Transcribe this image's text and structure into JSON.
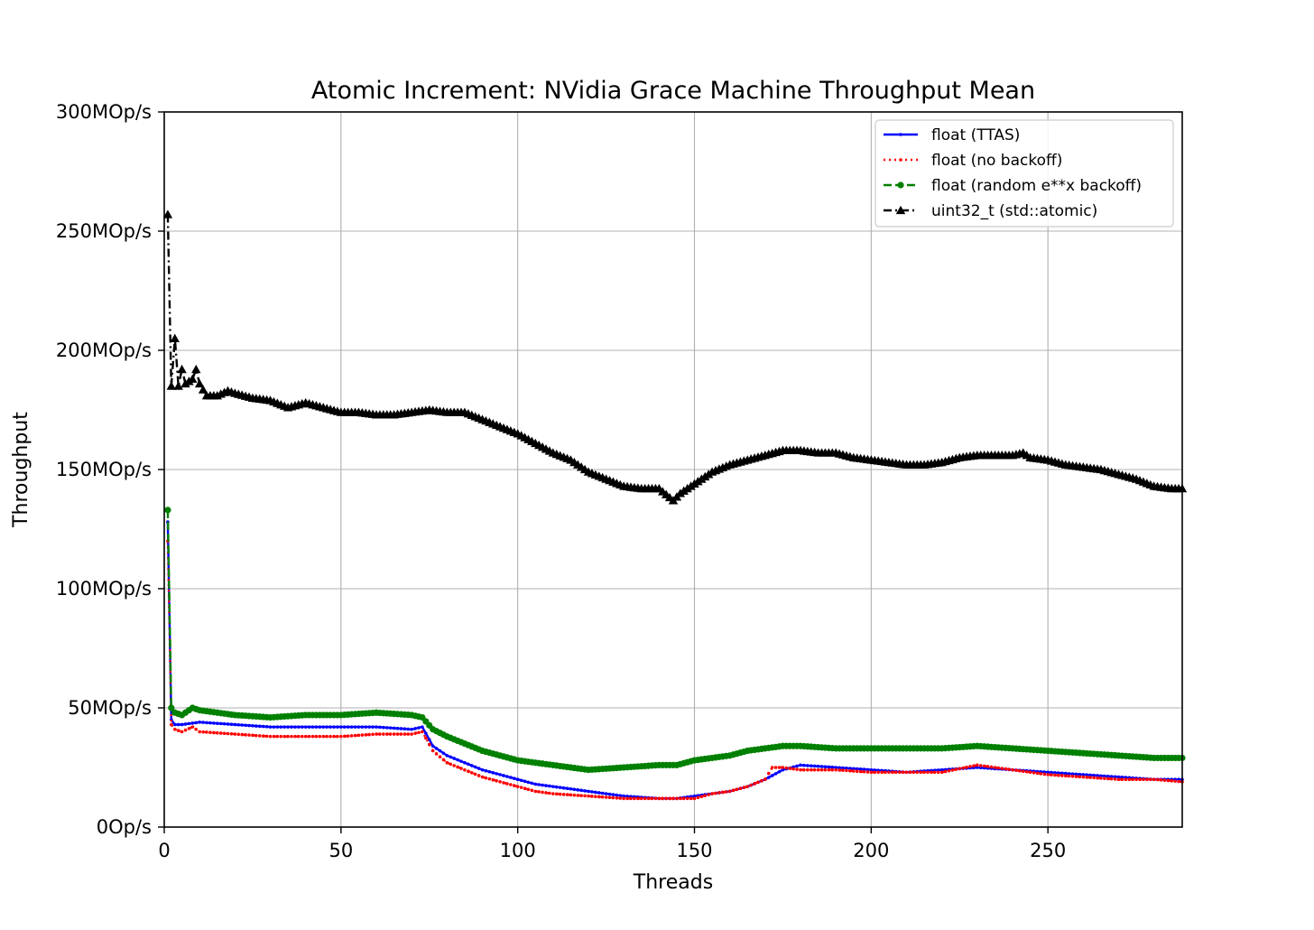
{
  "chart_data": {
    "type": "line",
    "title": "Atomic Increment: NVidia Grace Machine Throughput Mean",
    "xlabel": "Threads",
    "ylabel": "Throughput",
    "xlim": [
      0,
      288
    ],
    "ylim": [
      0,
      300
    ],
    "x_ticks": [
      0,
      50,
      100,
      150,
      200,
      250
    ],
    "x_tick_labels": [
      "0",
      "50",
      "100",
      "150",
      "200",
      "250"
    ],
    "y_ticks": [
      0,
      50,
      100,
      150,
      200,
      250,
      300
    ],
    "y_tick_labels": [
      "0Op/s",
      "50MOp/s",
      "100MOp/s",
      "150MOp/s",
      "200MOp/s",
      "250MOp/s",
      "300MOp/s"
    ],
    "grid": true,
    "legend_position": "top-right",
    "series": [
      {
        "name": "float (TTAS)",
        "color": "#0000ff",
        "marker": "point",
        "linestyle": "solid",
        "points": [
          [
            1,
            128
          ],
          [
            2,
            45
          ],
          [
            3,
            43
          ],
          [
            5,
            43
          ],
          [
            10,
            44
          ],
          [
            20,
            43
          ],
          [
            30,
            42
          ],
          [
            40,
            42
          ],
          [
            50,
            42
          ],
          [
            60,
            42
          ],
          [
            70,
            41
          ],
          [
            73,
            42
          ],
          [
            76,
            34
          ],
          [
            80,
            30
          ],
          [
            85,
            27
          ],
          [
            90,
            24
          ],
          [
            95,
            22
          ],
          [
            100,
            20
          ],
          [
            105,
            18
          ],
          [
            110,
            17
          ],
          [
            120,
            15
          ],
          [
            130,
            13
          ],
          [
            140,
            12
          ],
          [
            145,
            12
          ],
          [
            150,
            13
          ],
          [
            155,
            14
          ],
          [
            160,
            15
          ],
          [
            165,
            17
          ],
          [
            170,
            20
          ],
          [
            175,
            24
          ],
          [
            180,
            26
          ],
          [
            190,
            25
          ],
          [
            200,
            24
          ],
          [
            210,
            23
          ],
          [
            220,
            24
          ],
          [
            230,
            25
          ],
          [
            240,
            24
          ],
          [
            250,
            23
          ],
          [
            260,
            22
          ],
          [
            270,
            21
          ],
          [
            280,
            20
          ],
          [
            288,
            20
          ]
        ]
      },
      {
        "name": "float (no backoff)",
        "color": "#ff0000",
        "marker": "point",
        "linestyle": "dotted",
        "points": [
          [
            1,
            120
          ],
          [
            2,
            43
          ],
          [
            3,
            41
          ],
          [
            5,
            40
          ],
          [
            8,
            42
          ],
          [
            10,
            40
          ],
          [
            20,
            39
          ],
          [
            30,
            38
          ],
          [
            40,
            38
          ],
          [
            50,
            38
          ],
          [
            60,
            39
          ],
          [
            70,
            39
          ],
          [
            73,
            40
          ],
          [
            76,
            32
          ],
          [
            80,
            27
          ],
          [
            85,
            24
          ],
          [
            90,
            21
          ],
          [
            95,
            19
          ],
          [
            100,
            17
          ],
          [
            105,
            15
          ],
          [
            110,
            14
          ],
          [
            120,
            13
          ],
          [
            130,
            12
          ],
          [
            140,
            12
          ],
          [
            145,
            12
          ],
          [
            150,
            12
          ],
          [
            155,
            14
          ],
          [
            160,
            15
          ],
          [
            165,
            17
          ],
          [
            170,
            20
          ],
          [
            172,
            25
          ],
          [
            175,
            25
          ],
          [
            180,
            24
          ],
          [
            190,
            24
          ],
          [
            200,
            23
          ],
          [
            210,
            23
          ],
          [
            220,
            23
          ],
          [
            230,
            26
          ],
          [
            240,
            24
          ],
          [
            250,
            22
          ],
          [
            260,
            21
          ],
          [
            270,
            20
          ],
          [
            280,
            20
          ],
          [
            288,
            19
          ]
        ]
      },
      {
        "name": "float (random e**x backoff)",
        "color": "#008000",
        "marker": "circle",
        "linestyle": "dashed",
        "points": [
          [
            1,
            133
          ],
          [
            2,
            50
          ],
          [
            3,
            48
          ],
          [
            5,
            47
          ],
          [
            8,
            50
          ],
          [
            10,
            49
          ],
          [
            20,
            47
          ],
          [
            30,
            46
          ],
          [
            40,
            47
          ],
          [
            50,
            47
          ],
          [
            60,
            48
          ],
          [
            70,
            47
          ],
          [
            73,
            46
          ],
          [
            76,
            41
          ],
          [
            80,
            38
          ],
          [
            85,
            35
          ],
          [
            90,
            32
          ],
          [
            95,
            30
          ],
          [
            100,
            28
          ],
          [
            105,
            27
          ],
          [
            110,
            26
          ],
          [
            120,
            24
          ],
          [
            130,
            25
          ],
          [
            140,
            26
          ],
          [
            145,
            26
          ],
          [
            150,
            28
          ],
          [
            155,
            29
          ],
          [
            160,
            30
          ],
          [
            165,
            32
          ],
          [
            170,
            33
          ],
          [
            175,
            34
          ],
          [
            180,
            34
          ],
          [
            190,
            33
          ],
          [
            200,
            33
          ],
          [
            210,
            33
          ],
          [
            220,
            33
          ],
          [
            230,
            34
          ],
          [
            240,
            33
          ],
          [
            250,
            32
          ],
          [
            260,
            31
          ],
          [
            270,
            30
          ],
          [
            280,
            29
          ],
          [
            288,
            29
          ]
        ]
      },
      {
        "name": "uint32_t (std::atomic)",
        "color": "#000000",
        "marker": "triangle",
        "linestyle": "dashdot",
        "points": [
          [
            1,
            257
          ],
          [
            2,
            185
          ],
          [
            3,
            205
          ],
          [
            4,
            185
          ],
          [
            5,
            192
          ],
          [
            6,
            186
          ],
          [
            8,
            188
          ],
          [
            9,
            192
          ],
          [
            10,
            186
          ],
          [
            12,
            181
          ],
          [
            15,
            181
          ],
          [
            18,
            183
          ],
          [
            20,
            182
          ],
          [
            25,
            180
          ],
          [
            30,
            179
          ],
          [
            35,
            176
          ],
          [
            40,
            178
          ],
          [
            45,
            176
          ],
          [
            50,
            174
          ],
          [
            55,
            174
          ],
          [
            60,
            173
          ],
          [
            65,
            173
          ],
          [
            70,
            174
          ],
          [
            75,
            175
          ],
          [
            80,
            174
          ],
          [
            85,
            174
          ],
          [
            90,
            171
          ],
          [
            95,
            168
          ],
          [
            100,
            165
          ],
          [
            105,
            161
          ],
          [
            110,
            157
          ],
          [
            115,
            154
          ],
          [
            120,
            149
          ],
          [
            125,
            146
          ],
          [
            130,
            143
          ],
          [
            135,
            142
          ],
          [
            140,
            142
          ],
          [
            144,
            137
          ],
          [
            146,
            140
          ],
          [
            150,
            144
          ],
          [
            155,
            149
          ],
          [
            160,
            152
          ],
          [
            165,
            154
          ],
          [
            170,
            156
          ],
          [
            175,
            158
          ],
          [
            180,
            158
          ],
          [
            185,
            157
          ],
          [
            190,
            157
          ],
          [
            195,
            155
          ],
          [
            200,
            154
          ],
          [
            205,
            153
          ],
          [
            210,
            152
          ],
          [
            215,
            152
          ],
          [
            220,
            153
          ],
          [
            225,
            155
          ],
          [
            230,
            156
          ],
          [
            235,
            156
          ],
          [
            240,
            156
          ],
          [
            243,
            157
          ],
          [
            245,
            155
          ],
          [
            250,
            154
          ],
          [
            255,
            152
          ],
          [
            260,
            151
          ],
          [
            265,
            150
          ],
          [
            270,
            148
          ],
          [
            275,
            146
          ],
          [
            280,
            143
          ],
          [
            285,
            142
          ],
          [
            288,
            142
          ]
        ]
      }
    ]
  }
}
